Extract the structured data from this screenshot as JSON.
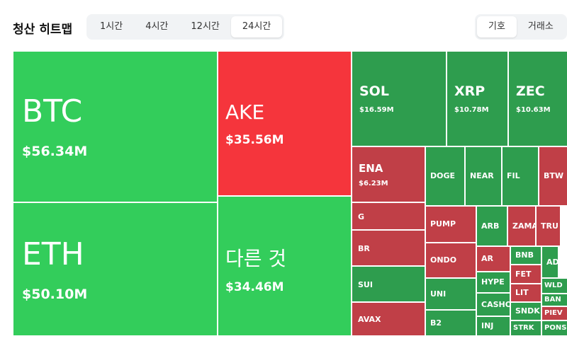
{
  "header": {
    "title": "청산 히트맵",
    "time_tabs": [
      "1시간",
      "4시간",
      "12시간",
      "24시간"
    ],
    "active_time_tab": 3,
    "group_tabs": [
      "기호",
      "거래소"
    ],
    "active_group_tab": 0
  },
  "treemap": {
    "tiles": [
      {
        "label": "BTC",
        "value_label": "$56.34M",
        "color": "#33cd5b"
      },
      {
        "label": "ETH",
        "value_label": "$50.10M",
        "color": "#33cd5b"
      },
      {
        "label": "AKE",
        "value_label": "$35.56M",
        "color": "#f5353c"
      },
      {
        "label": "다른 것",
        "value_label": "$34.46M",
        "color": "#33cd5b"
      },
      {
        "label": "SOL",
        "value_label": "$16.59M",
        "color": "#2e9d4e"
      },
      {
        "label": "XRP",
        "value_label": "$10.78M",
        "color": "#2e9d4e"
      },
      {
        "label": "ZEC",
        "value_label": "$10.63M",
        "color": "#2e9d4e"
      },
      {
        "label": "ENA",
        "value_label": "$6.23M",
        "color": "#c03f47"
      },
      {
        "label": "G",
        "color": "#c03f47"
      },
      {
        "label": "BR",
        "color": "#c03f47"
      },
      {
        "label": "SUI",
        "color": "#2e9d4e"
      },
      {
        "label": "AVAX",
        "color": "#c03f47"
      },
      {
        "label": "DOGE",
        "color": "#2e9d4e"
      },
      {
        "label": "NEAR",
        "color": "#2e9d4e"
      },
      {
        "label": "FIL",
        "color": "#2e9d4e"
      },
      {
        "label": "BTW",
        "color": "#c03f47"
      },
      {
        "label": "PUMP",
        "color": "#c03f47"
      },
      {
        "label": "ONDO",
        "color": "#c03f47"
      },
      {
        "label": "UNI",
        "color": "#2e9d4e"
      },
      {
        "label": "B2",
        "color": "#2e9d4e"
      },
      {
        "label": "ARB",
        "color": "#2e9d4e"
      },
      {
        "label": "ZAMA",
        "color": "#c03f47"
      },
      {
        "label": "TRU",
        "color": "#c03f47"
      },
      {
        "label": "AR",
        "color": "#c03f47"
      },
      {
        "label": "HYPE",
        "color": "#2e9d4e"
      },
      {
        "label": "CASHO",
        "color": "#2e9d4e"
      },
      {
        "label": "INJ",
        "color": "#2e9d4e"
      },
      {
        "label": "BNB",
        "color": "#2e9d4e"
      },
      {
        "label": "FET",
        "color": "#c03f47"
      },
      {
        "label": "LIT",
        "color": "#c03f47"
      },
      {
        "label": "SNDK",
        "color": "#2e9d4e"
      },
      {
        "label": "STRK",
        "color": "#2e9d4e"
      },
      {
        "label": "AD",
        "color": "#2e9d4e"
      },
      {
        "label": "WLD",
        "color": "#2e9d4e"
      },
      {
        "label": "BAN",
        "color": "#2e9d4e"
      },
      {
        "label": "PIEV",
        "color": "#c03f47"
      },
      {
        "label": "PONS",
        "color": "#2e9d4e"
      }
    ]
  }
}
